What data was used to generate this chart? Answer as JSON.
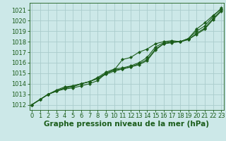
{
  "title": "Graphe pression niveau de la mer (hPa)",
  "background_color": "#cce8e8",
  "grid_color": "#aacccc",
  "plot_bg_color": "#cce8e8",
  "line_color": "#1a5c1a",
  "marker_color": "#1a5c1a",
  "xlim": [
    -0.3,
    23.3
  ],
  "ylim": [
    1011.5,
    1021.7
  ],
  "yticks": [
    1012,
    1013,
    1014,
    1015,
    1016,
    1017,
    1018,
    1019,
    1020,
    1021
  ],
  "xticks": [
    0,
    1,
    2,
    3,
    4,
    5,
    6,
    7,
    8,
    9,
    10,
    11,
    12,
    13,
    14,
    15,
    16,
    17,
    18,
    19,
    20,
    21,
    22,
    23
  ],
  "series": [
    [
      1012.0,
      1012.5,
      1013.0,
      1013.3,
      1013.6,
      1013.8,
      1014.0,
      1014.2,
      1014.5,
      1015.0,
      1015.3,
      1016.3,
      1016.5,
      1017.0,
      1017.3,
      1017.8,
      1018.0,
      1018.1,
      1018.0,
      1018.3,
      1019.2,
      1019.8,
      1020.5,
      1021.1
    ],
    [
      1012.0,
      1012.5,
      1013.0,
      1013.3,
      1013.6,
      1013.7,
      1014.0,
      1014.2,
      1014.6,
      1015.1,
      1015.4,
      1015.5,
      1015.7,
      1016.0,
      1016.5,
      1017.5,
      1017.9,
      1018.0,
      1018.0,
      1018.3,
      1019.0,
      1019.5,
      1020.4,
      1021.2
    ],
    [
      1012.0,
      1012.5,
      1013.0,
      1013.3,
      1013.5,
      1013.6,
      1013.8,
      1014.0,
      1014.3,
      1015.0,
      1015.3,
      1015.4,
      1015.6,
      1015.9,
      1016.3,
      1017.3,
      1017.8,
      1018.0,
      1018.0,
      1018.2,
      1018.8,
      1019.3,
      1020.2,
      1021.0
    ],
    [
      1012.0,
      1012.5,
      1013.0,
      1013.4,
      1013.7,
      1013.8,
      1014.0,
      1014.2,
      1014.5,
      1014.9,
      1015.2,
      1015.4,
      1015.6,
      1015.8,
      1016.2,
      1017.2,
      1017.8,
      1017.9,
      1018.0,
      1018.2,
      1018.7,
      1019.2,
      1020.1,
      1020.9
    ]
  ],
  "marker_line_idx": 0,
  "tick_fontsize": 6,
  "xlabel_fontsize": 7.5,
  "linewidth": 0.8,
  "markersize": 2.2
}
